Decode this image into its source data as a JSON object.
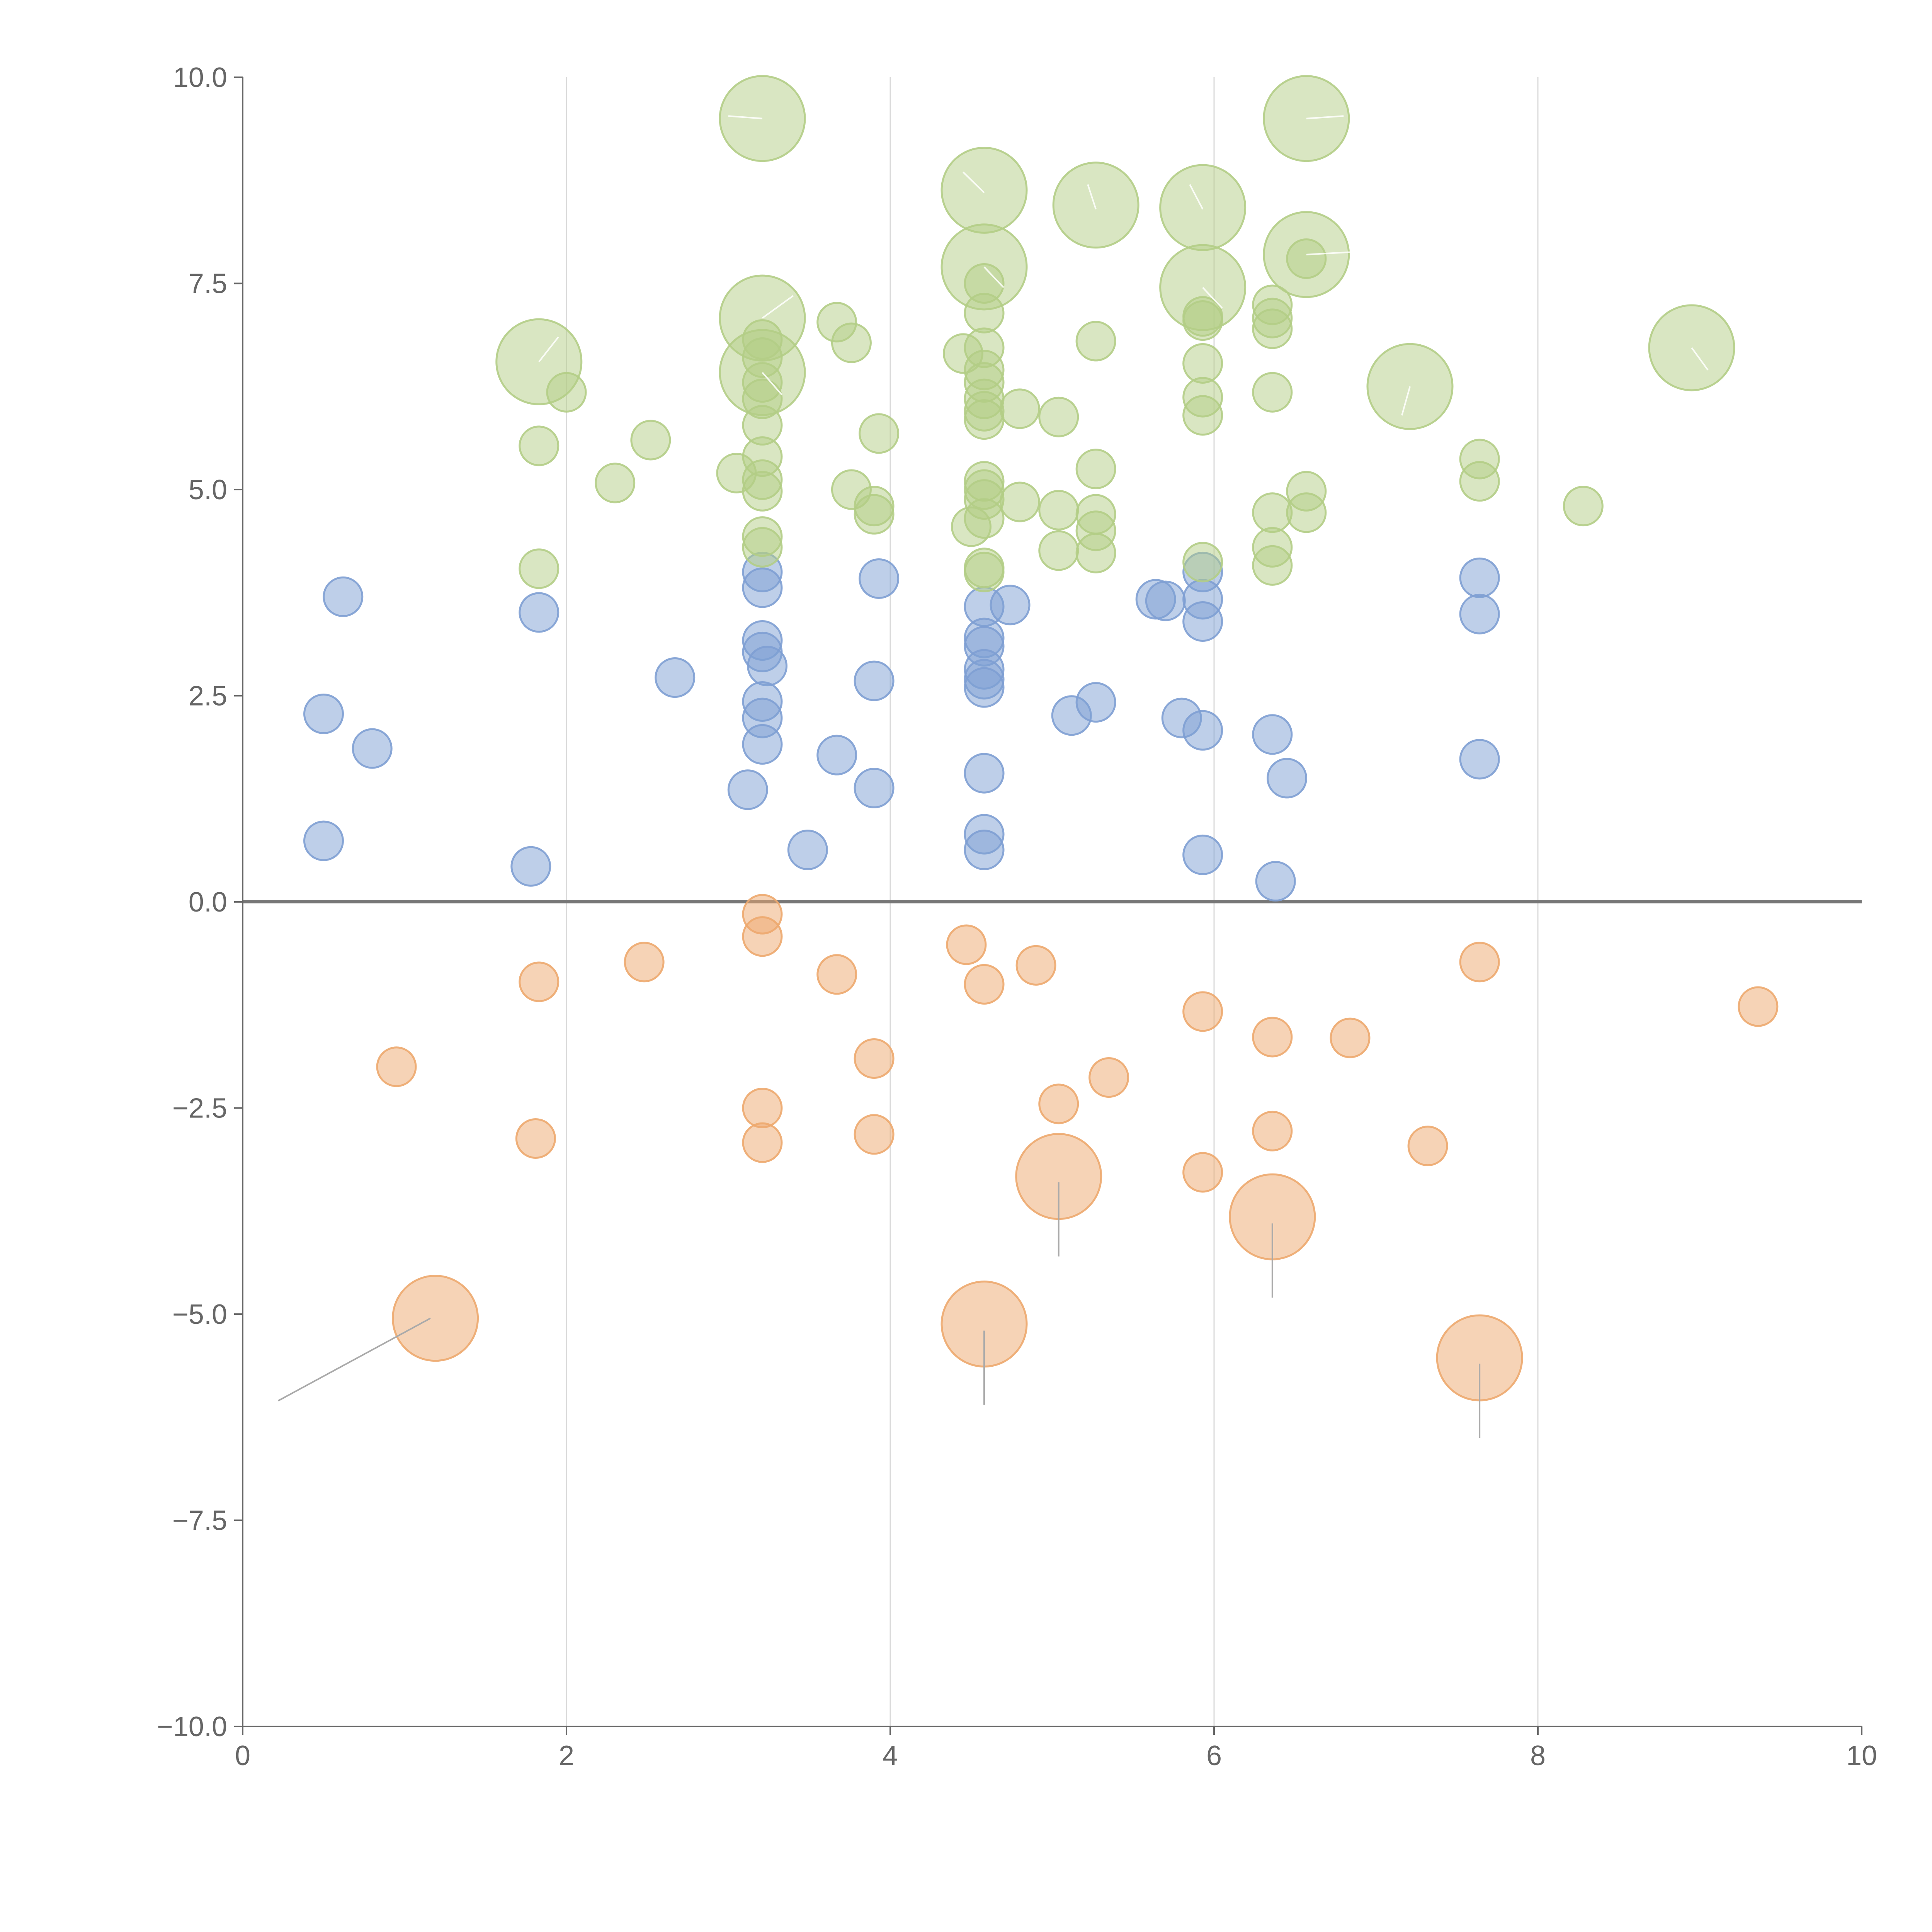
{
  "chart_data": {
    "type": "scatter",
    "title": "",
    "xlabel": "",
    "ylabel": "",
    "xlim": [
      0,
      10
    ],
    "ylim": [
      -10,
      10
    ],
    "x_ticks": [
      "0",
      "2",
      "4",
      "6",
      "8",
      "10"
    ],
    "y_ticks": [
      "10.0",
      "7.5",
      "5.0",
      "2.5",
      "0.0",
      "−2.5",
      "−5.0",
      "−7.5",
      "−10.0"
    ],
    "grid": "vertical",
    "legend": "none",
    "bubble_encoding": "marker size",
    "series": [
      {
        "color": "#7e9fd3",
        "points": [
          [
            0.5,
            2.28,
            1
          ],
          [
            0.62,
            3.7,
            1
          ],
          [
            0.8,
            1.86,
            1
          ],
          [
            0.5,
            0.74,
            1
          ],
          [
            1.78,
            0.43,
            1
          ],
          [
            1.83,
            3.51,
            1
          ],
          [
            2.67,
            2.72,
            1
          ],
          [
            3.12,
            1.36,
            1
          ],
          [
            3.21,
            4.0,
            1
          ],
          [
            3.21,
            3.81,
            1
          ],
          [
            3.21,
            3.17,
            1
          ],
          [
            3.21,
            3.03,
            1
          ],
          [
            3.24,
            2.86,
            1
          ],
          [
            3.21,
            2.43,
            1
          ],
          [
            3.21,
            2.23,
            1
          ],
          [
            3.21,
            1.91,
            1
          ],
          [
            3.49,
            0.63,
            1
          ],
          [
            3.67,
            1.78,
            1
          ],
          [
            3.9,
            2.68,
            1
          ],
          [
            3.9,
            1.38,
            1
          ],
          [
            3.93,
            3.92,
            1
          ],
          [
            4.58,
            3.58,
            1
          ],
          [
            4.58,
            3.2,
            1
          ],
          [
            4.58,
            3.1,
            1
          ],
          [
            4.58,
            2.82,
            1
          ],
          [
            4.58,
            2.7,
            1
          ],
          [
            4.58,
            2.6,
            1
          ],
          [
            4.58,
            1.56,
            1
          ],
          [
            4.58,
            0.82,
            1
          ],
          [
            4.58,
            0.63,
            1
          ],
          [
            4.74,
            3.6,
            1
          ],
          [
            5.12,
            2.26,
            1
          ],
          [
            5.27,
            2.42,
            1
          ],
          [
            5.64,
            3.67,
            1
          ],
          [
            5.7,
            3.65,
            1
          ],
          [
            5.8,
            2.23,
            1
          ],
          [
            5.93,
            4.0,
            1
          ],
          [
            5.93,
            3.67,
            1
          ],
          [
            5.93,
            3.4,
            1
          ],
          [
            5.93,
            2.08,
            1
          ],
          [
            5.93,
            0.57,
            1
          ],
          [
            6.36,
            2.03,
            1
          ],
          [
            6.38,
            0.25,
            1
          ],
          [
            6.45,
            1.5,
            1
          ],
          [
            7.64,
            3.93,
            1
          ],
          [
            7.64,
            3.49,
            1
          ],
          [
            7.64,
            1.73,
            1
          ]
        ]
      },
      {
        "color": "#b3cd86",
        "points": [
          [
            1.83,
            6.55,
            2.2
          ],
          [
            2.0,
            6.18,
            1
          ],
          [
            1.83,
            5.53,
            1
          ],
          [
            1.83,
            4.04,
            1
          ],
          [
            2.3,
            5.08,
            1
          ],
          [
            2.52,
            5.6,
            1
          ],
          [
            3.05,
            5.2,
            1
          ],
          [
            3.21,
            9.5,
            2.2
          ],
          [
            3.21,
            7.08,
            2.2
          ],
          [
            3.21,
            6.42,
            2.2
          ],
          [
            3.21,
            6.82,
            1
          ],
          [
            3.21,
            6.6,
            1
          ],
          [
            3.21,
            6.3,
            1
          ],
          [
            3.21,
            6.1,
            1
          ],
          [
            3.21,
            5.78,
            1
          ],
          [
            3.21,
            5.4,
            1
          ],
          [
            3.21,
            5.12,
            1
          ],
          [
            3.21,
            4.98,
            1
          ],
          [
            3.21,
            4.43,
            1
          ],
          [
            3.21,
            4.3,
            1
          ],
          [
            3.67,
            7.03,
            1
          ],
          [
            3.76,
            6.78,
            1
          ],
          [
            3.76,
            5.0,
            1
          ],
          [
            3.9,
            4.8,
            1
          ],
          [
            3.9,
            4.7,
            1
          ],
          [
            3.93,
            5.68,
            1
          ],
          [
            4.45,
            6.65,
            1
          ],
          [
            4.58,
            8.63,
            2.2
          ],
          [
            4.58,
            7.7,
            2.2
          ],
          [
            4.58,
            7.5,
            1
          ],
          [
            4.58,
            7.14,
            1
          ],
          [
            4.58,
            6.72,
            1
          ],
          [
            4.58,
            6.45,
            1
          ],
          [
            4.58,
            6.3,
            1
          ],
          [
            4.58,
            6.1,
            1
          ],
          [
            4.58,
            5.95,
            1
          ],
          [
            4.58,
            5.85,
            1
          ],
          [
            4.58,
            5.1,
            1
          ],
          [
            4.58,
            5.0,
            1
          ],
          [
            4.58,
            4.88,
            1
          ],
          [
            4.58,
            4.65,
            1
          ],
          [
            4.58,
            4.05,
            1
          ],
          [
            4.58,
            4.0,
            1
          ],
          [
            4.5,
            4.55,
            1
          ],
          [
            4.8,
            5.98,
            1
          ],
          [
            4.8,
            4.85,
            1
          ],
          [
            5.04,
            5.88,
            1
          ],
          [
            5.04,
            4.75,
            1
          ],
          [
            5.04,
            4.26,
            1
          ],
          [
            5.27,
            8.45,
            2.2
          ],
          [
            5.27,
            6.8,
            1
          ],
          [
            5.27,
            5.25,
            1
          ],
          [
            5.27,
            4.7,
            1
          ],
          [
            5.27,
            4.5,
            1
          ],
          [
            5.27,
            4.23,
            1
          ],
          [
            5.93,
            8.42,
            2.2
          ],
          [
            5.93,
            7.45,
            2.2
          ],
          [
            5.93,
            7.1,
            1
          ],
          [
            5.93,
            7.05,
            1
          ],
          [
            5.93,
            6.53,
            1
          ],
          [
            5.93,
            6.12,
            1
          ],
          [
            5.93,
            5.9,
            1
          ],
          [
            5.93,
            4.12,
            1
          ],
          [
            6.36,
            7.24,
            1
          ],
          [
            6.36,
            7.08,
            1
          ],
          [
            6.36,
            6.95,
            1
          ],
          [
            6.36,
            6.18,
            1
          ],
          [
            6.36,
            4.72,
            1
          ],
          [
            6.36,
            4.3,
            1
          ],
          [
            6.36,
            4.08,
            1
          ],
          [
            6.57,
            9.5,
            2.2
          ],
          [
            6.57,
            7.85,
            2.2
          ],
          [
            6.57,
            7.8,
            1
          ],
          [
            6.57,
            4.98,
            1
          ],
          [
            6.57,
            4.72,
            1
          ],
          [
            7.21,
            6.25,
            2.2
          ],
          [
            7.64,
            5.37,
            1
          ],
          [
            7.64,
            5.1,
            1
          ],
          [
            8.28,
            4.8,
            1
          ],
          [
            8.95,
            6.72,
            2.2
          ]
        ]
      },
      {
        "color": "#eda86e",
        "points": [
          [
            0.95,
            -2.0,
            1
          ],
          [
            1.19,
            -5.05,
            2.2
          ],
          [
            1.83,
            -0.97,
            1
          ],
          [
            1.81,
            -2.87,
            1
          ],
          [
            2.48,
            -0.73,
            1
          ],
          [
            3.21,
            -0.15,
            1
          ],
          [
            3.21,
            -0.42,
            1
          ],
          [
            3.21,
            -2.5,
            1
          ],
          [
            3.21,
            -2.92,
            1
          ],
          [
            3.67,
            -0.88,
            1
          ],
          [
            3.9,
            -1.9,
            1
          ],
          [
            3.9,
            -2.82,
            1
          ],
          [
            4.47,
            -0.52,
            1
          ],
          [
            4.58,
            -1.0,
            1
          ],
          [
            4.58,
            -5.12,
            2.2
          ],
          [
            4.9,
            -0.77,
            1
          ],
          [
            5.04,
            -2.45,
            1
          ],
          [
            5.04,
            -3.33,
            2.2
          ],
          [
            5.35,
            -2.13,
            1
          ],
          [
            5.93,
            -1.33,
            1
          ],
          [
            5.93,
            -3.28,
            1
          ],
          [
            6.36,
            -1.64,
            1
          ],
          [
            6.36,
            -2.78,
            1
          ],
          [
            6.36,
            -3.82,
            2.2
          ],
          [
            6.84,
            -1.65,
            1
          ],
          [
            7.32,
            -2.96,
            1
          ],
          [
            7.64,
            -0.73,
            1
          ],
          [
            7.64,
            -5.53,
            2.2
          ],
          [
            9.36,
            -1.27,
            1
          ]
        ]
      }
    ]
  }
}
